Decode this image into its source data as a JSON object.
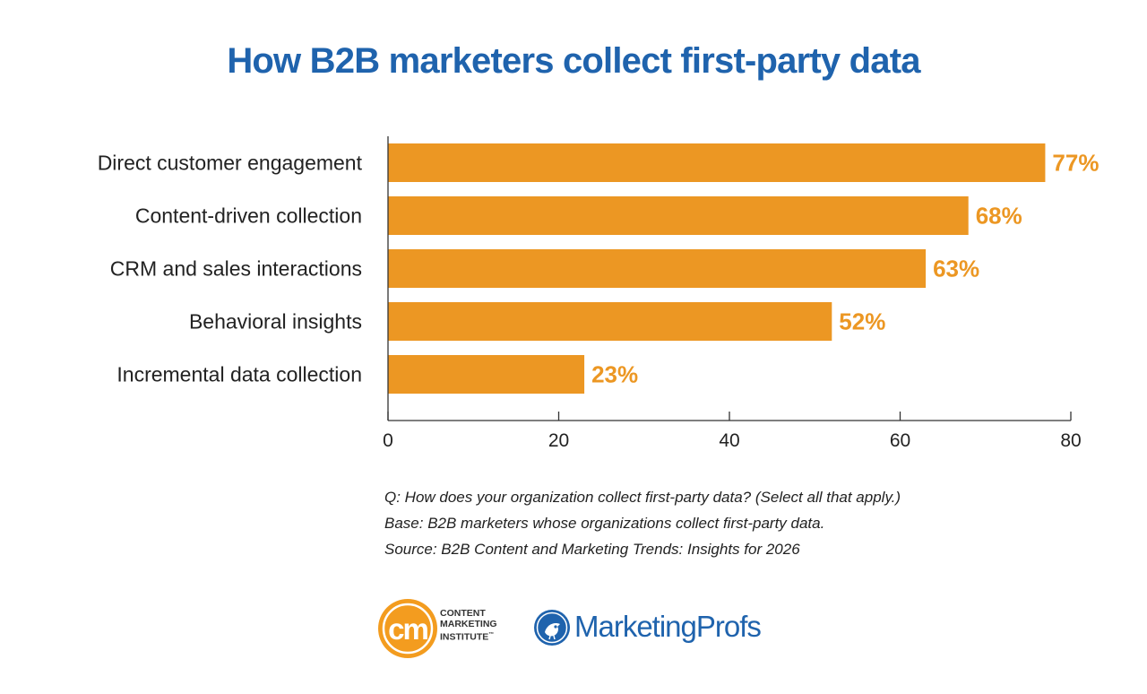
{
  "title": "How B2B marketers collect first-party data",
  "colors": {
    "title": "#1f63ad",
    "bar": "#ec9723",
    "value_label": "#ec9723",
    "axis": "#333333",
    "text": "#222222",
    "mp_blue": "#1f63ad",
    "cmi_orange": "#f39c1f"
  },
  "chart_data": {
    "type": "bar",
    "orientation": "horizontal",
    "categories": [
      "Direct customer engagement",
      "Content-driven collection",
      "CRM and sales interactions",
      "Behavioral insights",
      "Incremental data collection"
    ],
    "values": [
      77,
      68,
      63,
      52,
      23
    ],
    "value_labels": [
      "77%",
      "68%",
      "63%",
      "52%",
      "23%"
    ],
    "title": "How B2B marketers collect first-party data",
    "xlabel": "",
    "ylabel": "",
    "xlim": [
      0,
      80
    ],
    "xticks": [
      0,
      20,
      40,
      60,
      80
    ],
    "grid": false
  },
  "notes": {
    "question": "Q: How does your organization collect first-party data? (Select all that apply.)",
    "base": "Base: B2B marketers whose organizations collect first-party data.",
    "source": "Source: B2B Content and Marketing Trends: Insights for 2026"
  },
  "logos": {
    "cmi_mark": "cm",
    "cmi_line1": "CONTENT",
    "cmi_line2": "MARKETING",
    "cmi_line3": "INSTITUTE",
    "cmi_tm": "™",
    "mp_name": "MarketingProfs",
    "mp_icon": "bird-icon"
  }
}
